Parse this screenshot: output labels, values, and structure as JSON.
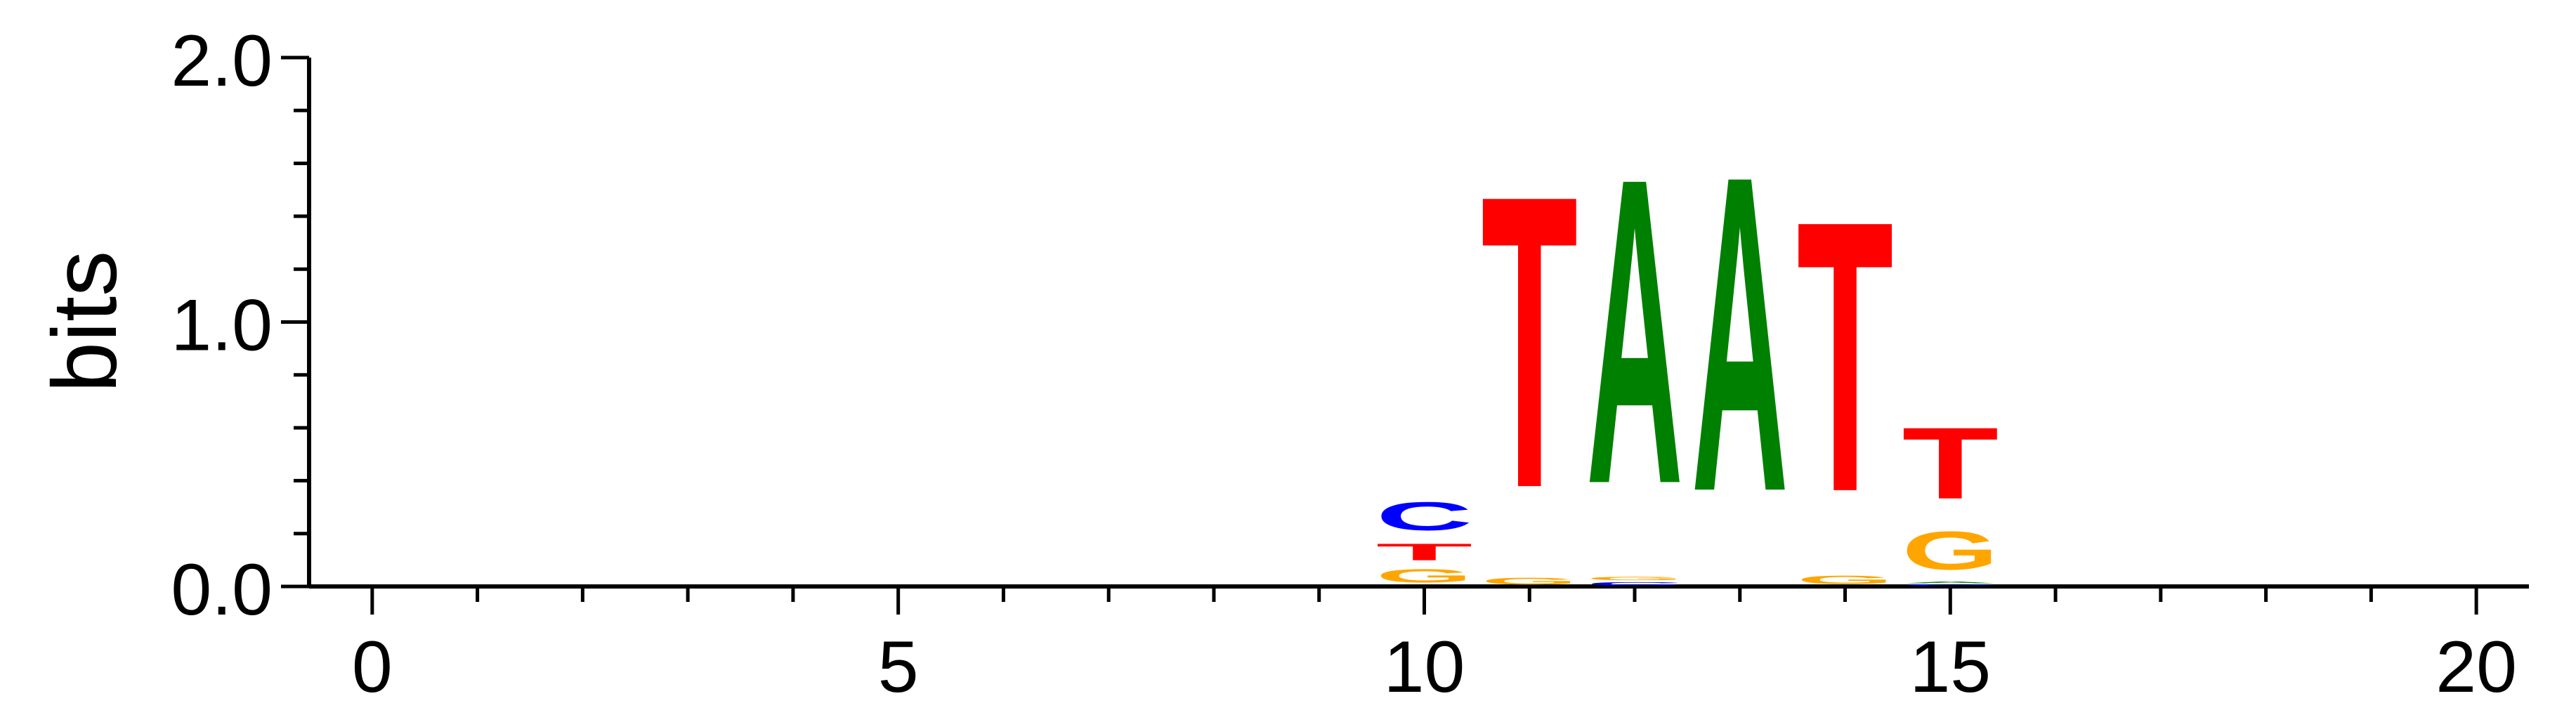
{
  "chart_data": {
    "type": "sequence-logo",
    "ylabel": "bits",
    "xlim": [
      -0.6,
      20.5
    ],
    "ylim": [
      0,
      2.0
    ],
    "x_ticks": [
      0,
      5,
      10,
      15,
      20
    ],
    "y_ticks": [
      0.0,
      1.0,
      2.0
    ],
    "y_tick_labels": [
      "0.0",
      "1.0",
      "2.0"
    ],
    "colors": {
      "A": "#008000",
      "C": "#0000ff",
      "G": "#ffa500",
      "T": "#ff0000"
    },
    "positions": [
      {
        "x": 10,
        "letters": [
          {
            "base": "G",
            "bits": 0.08
          },
          {
            "base": "T",
            "bits": 0.1
          },
          {
            "base": "C",
            "bits": 0.17
          }
        ]
      },
      {
        "x": 11,
        "letters": [
          {
            "base": "G",
            "bits": 0.04
          },
          {
            "base": "T",
            "bits": 1.76
          }
        ]
      },
      {
        "x": 12,
        "letters": [
          {
            "base": "C",
            "bits": 0.02
          },
          {
            "base": "G",
            "bits": 0.02
          },
          {
            "base": "A",
            "bits": 1.84
          }
        ]
      },
      {
        "x": 13,
        "letters": [
          {
            "base": "A",
            "bits": 1.9
          }
        ]
      },
      {
        "x": 14,
        "letters": [
          {
            "base": "G",
            "bits": 0.05
          },
          {
            "base": "T",
            "bits": 1.63
          }
        ]
      },
      {
        "x": 15,
        "letters": [
          {
            "base": "C",
            "bits": 0.01
          },
          {
            "base": "A",
            "bits": 0.01
          },
          {
            "base": "G",
            "bits": 0.23
          },
          {
            "base": "T",
            "bits": 0.43
          }
        ]
      }
    ]
  }
}
